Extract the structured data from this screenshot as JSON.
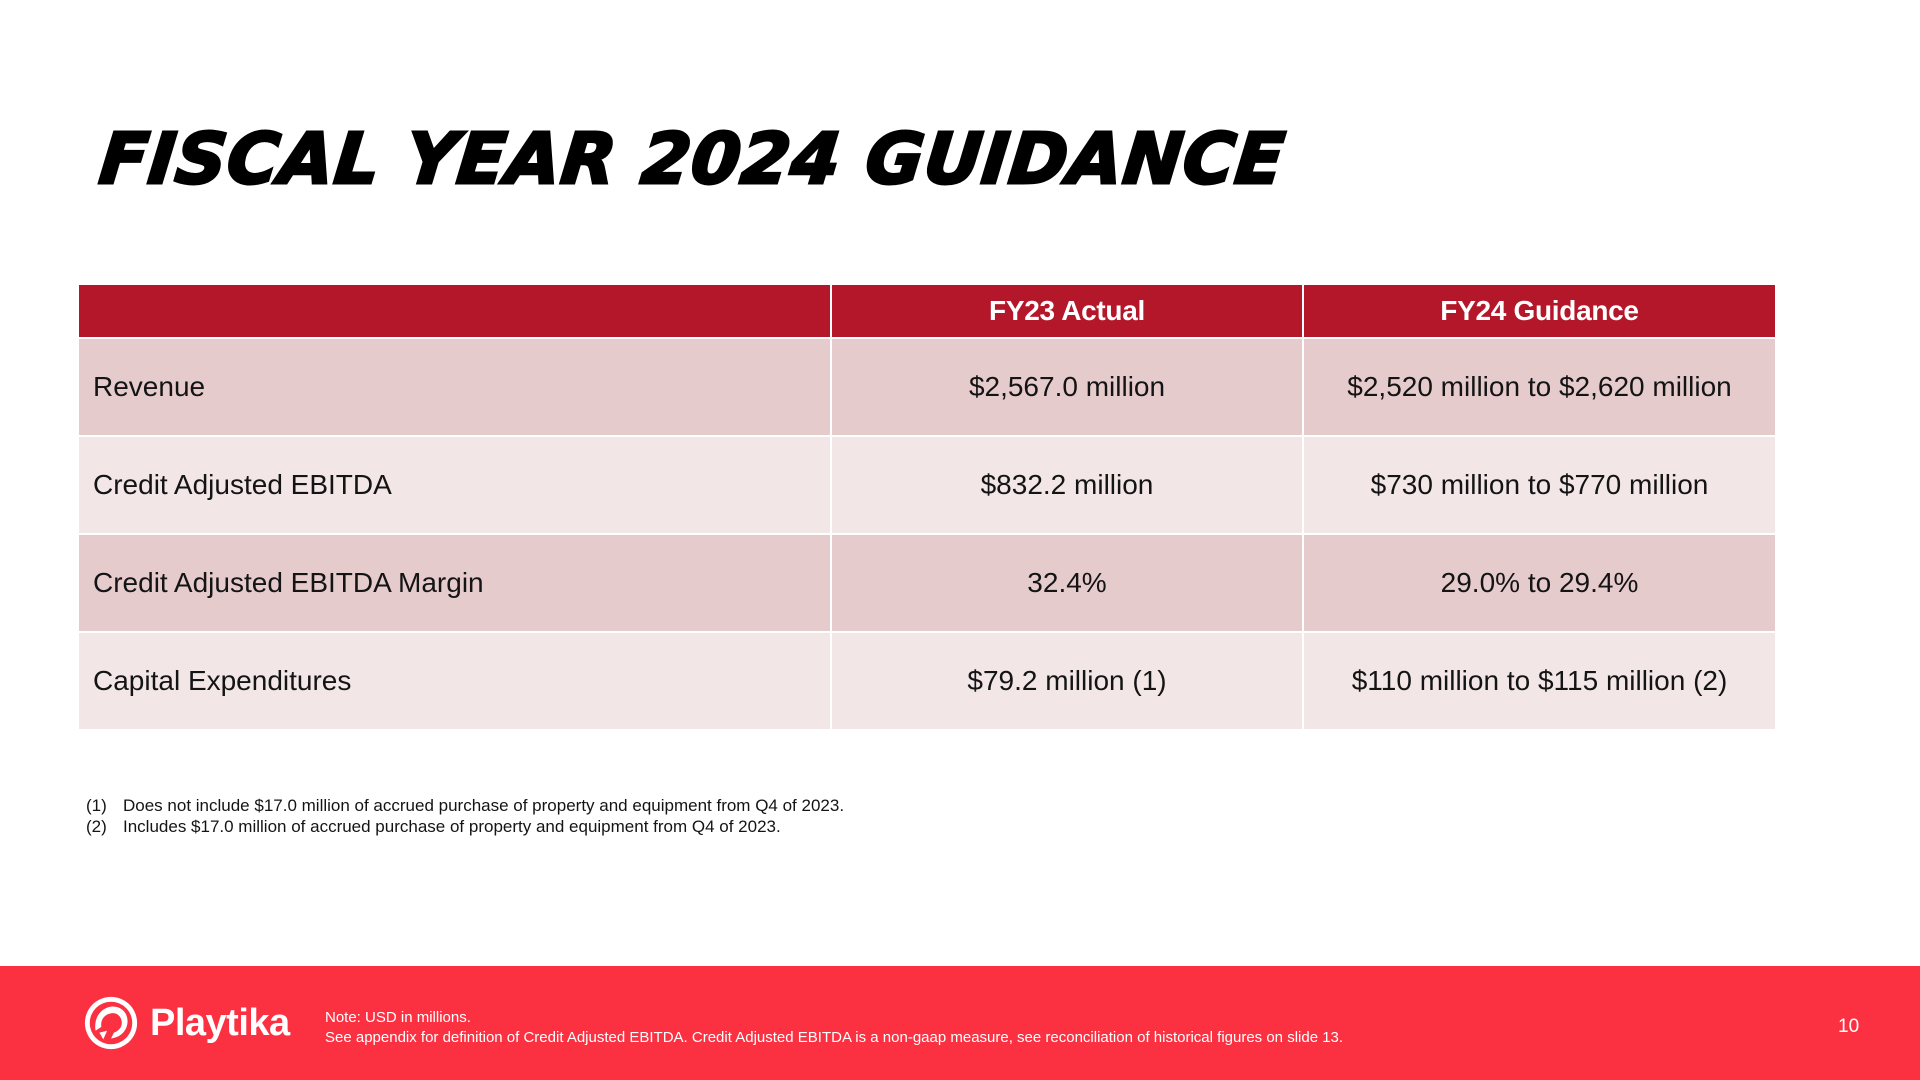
{
  "slide": {
    "title": "FISCAL YEAR 2024 GUIDANCE",
    "page_number": "10"
  },
  "table": {
    "headers": [
      "",
      "FY23 Actual",
      "FY24 Guidance"
    ],
    "rows": [
      {
        "label": "Revenue",
        "fy23": "$2,567.0 million",
        "fy24": "$2,520 million to $2,620 million"
      },
      {
        "label": "Credit Adjusted EBITDA",
        "fy23": "$832.2 million",
        "fy24": "$730 million to $770 million"
      },
      {
        "label": "Credit Adjusted EBITDA Margin",
        "fy23": "32.4%",
        "fy24": "29.0% to 29.4%"
      },
      {
        "label": "Capital Expenditures",
        "fy23": "$79.2 million (1)",
        "fy24": "$110 million to $115 million (2)"
      }
    ]
  },
  "footnotes": [
    {
      "mark": "(1)",
      "text": "Does not include $17.0 million of accrued purchase of property and equipment from Q4 of 2023."
    },
    {
      "mark": "(2)",
      "text": "Includes $17.0 million of accrued purchase of property and equipment from Q4 of 2023."
    }
  ],
  "footer": {
    "logo_text": "Playtika",
    "logo_icon": "cheetah-icon",
    "note_line1": "Note:  USD in millions.",
    "note_line2": "See appendix for definition of Credit Adjusted EBITDA. Credit Adjusted EBITDA is a non-gaap measure, see reconciliation of historical figures on slide 13."
  },
  "colors": {
    "header_red": "#b5172a",
    "footer_red": "#fb3041",
    "row_dark": "#e6cbcd",
    "row_light": "#f2e6e7"
  }
}
